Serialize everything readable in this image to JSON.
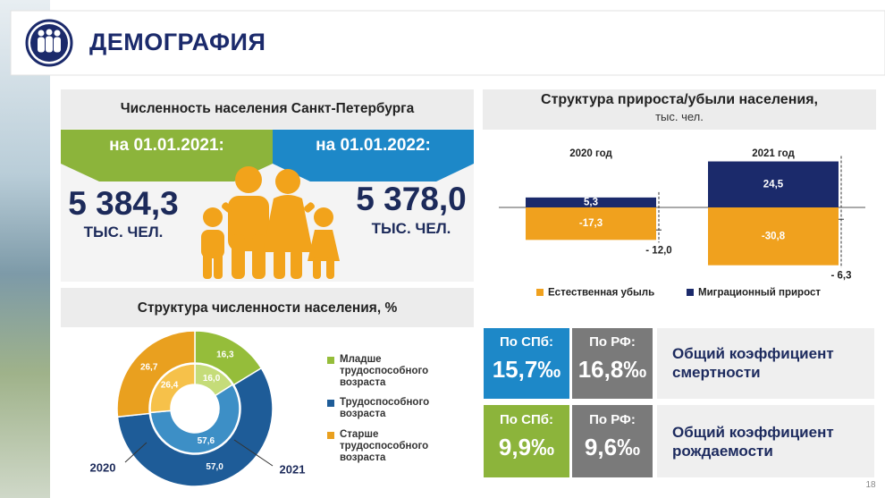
{
  "header": {
    "title": "ДЕМОГРАФИЯ"
  },
  "population": {
    "title": "Численность населения Санкт-Петербурга",
    "items": [
      {
        "date": "на 01.01.2021:",
        "value": "5 384,3",
        "unit": "ТЫС. ЧЕЛ."
      },
      {
        "date": "на 01.01.2022:",
        "value": "5 378,0",
        "unit": "ТЫС. ЧЕЛ."
      }
    ]
  },
  "chart_data": [
    {
      "type": "bar",
      "title": "Структура прироста/убыли населения,",
      "subtitle": "тыс. чел.",
      "categories": [
        "2020 год",
        "2021 год"
      ],
      "stacked": true,
      "series": [
        {
          "name": "Естественная убыль",
          "color": "#f0a11e",
          "values": [
            -17.3,
            -30.8
          ],
          "value_labels": [
            "-17,3",
            "-30,8"
          ]
        },
        {
          "name": "Миграционный прирост",
          "color": "#1b2a6b",
          "values": [
            5.3,
            24.5
          ],
          "value_labels": [
            "5,3",
            "24,5"
          ]
        }
      ],
      "totals": {
        "values": [
          -12.0,
          -6.3
        ],
        "value_labels": [
          "- 12,0",
          "- 6,3"
        ]
      }
    },
    {
      "type": "donut",
      "title": "Структура численности населения, %",
      "categories": [
        "Младше трудоспособного возраста",
        "Трудоспособного возраста",
        "Старше трудоспособного возраста"
      ],
      "series": [
        {
          "name": "2020",
          "colors": [
            "#95bd3a",
            "#1e5c98",
            "#e9a01f"
          ],
          "values": [
            16.3,
            57.0,
            26.7
          ],
          "value_labels": [
            "16,3",
            "57,0",
            "26,7"
          ]
        },
        {
          "name": "2021",
          "colors": [
            "#c5dc79",
            "#3d8fc6",
            "#f6c14a"
          ],
          "values": [
            16.0,
            57.6,
            26.4
          ],
          "value_labels": [
            "16,0",
            "57,6",
            "26,4"
          ]
        }
      ]
    }
  ],
  "rates": [
    {
      "spb_label": "По СПб:",
      "spb_value": "15,7‰",
      "rf_label": "По РФ:",
      "rf_value": "16,8‰",
      "title": "Общий коэффициент смертности"
    },
    {
      "spb_label": "По СПб:",
      "spb_value": "9,9‰",
      "rf_label": "По РФ:",
      "rf_value": "9,6‰",
      "title": "Общий коэффициент рождаемости"
    }
  ],
  "page_number": "18"
}
